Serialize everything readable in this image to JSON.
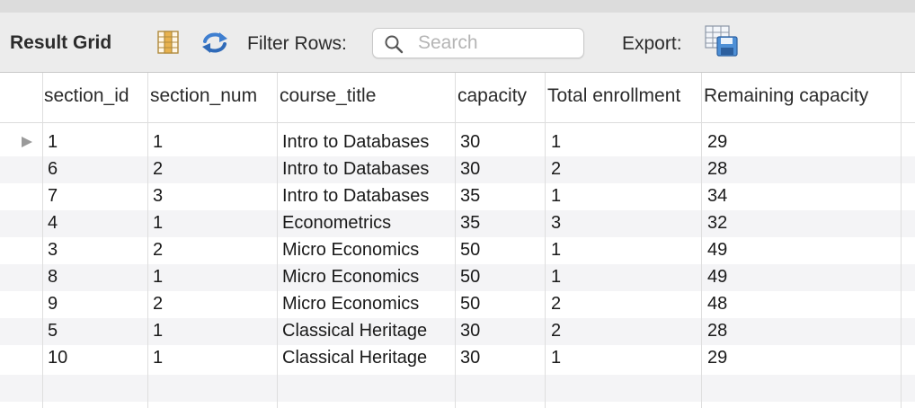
{
  "toolbar": {
    "title": "Result Grid",
    "filter_label": "Filter Rows:",
    "search_placeholder": "Search",
    "search_value": "",
    "export_label": "Export:",
    "icons": {
      "grid": "column-grid-icon",
      "refresh": "refresh-arrows-icon",
      "search": "search-icon",
      "export": "export-grid-disk-icon"
    }
  },
  "columns": [
    "section_id",
    "section_num",
    "course_title",
    "capacity",
    "Total enrollment",
    "Remaining capacity"
  ],
  "rows": [
    [
      "1",
      "1",
      "Intro to Databases",
      "30",
      "1",
      "29"
    ],
    [
      "6",
      "2",
      "Intro to Databases",
      "30",
      "2",
      "28"
    ],
    [
      "7",
      "3",
      "Intro to Databases",
      "35",
      "1",
      "34"
    ],
    [
      "4",
      "1",
      "Econometrics",
      "35",
      "3",
      "32"
    ],
    [
      "3",
      "2",
      "Micro Economics",
      "50",
      "1",
      "49"
    ],
    [
      "8",
      "1",
      "Micro Economics",
      "50",
      "1",
      "49"
    ],
    [
      "9",
      "2",
      "Micro Economics",
      "50",
      "2",
      "48"
    ],
    [
      "5",
      "1",
      "Classical Heritage",
      "30",
      "2",
      "28"
    ],
    [
      "10",
      "1",
      "Classical Heritage",
      "30",
      "1",
      "29"
    ]
  ],
  "selected_row_index": 0,
  "colors": {
    "toolbar_bg": "#ececec",
    "alt_row_bg": "#f4f4f6",
    "icon_blue": "#3f7fd0",
    "icon_orange": "#e0a64a"
  }
}
